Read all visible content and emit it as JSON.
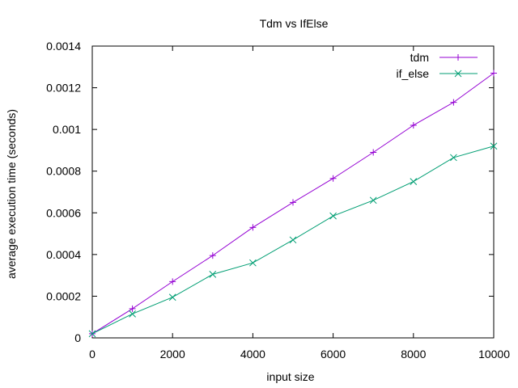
{
  "chart_data": {
    "type": "line",
    "title": "Tdm vs IfElse",
    "xlabel": "input size",
    "ylabel": "average execution time (seconds)",
    "xlim": [
      0,
      10000
    ],
    "ylim": [
      0,
      0.0014
    ],
    "xticks": [
      0,
      2000,
      4000,
      6000,
      8000,
      10000
    ],
    "xtick_labels": [
      "0",
      "2000",
      "4000",
      "6000",
      "8000",
      "10000"
    ],
    "yticks": [
      0,
      0.0002,
      0.0004,
      0.0006,
      0.0008,
      0.001,
      0.0012,
      0.0014
    ],
    "ytick_labels": [
      "0",
      "0.0002",
      "0.0004",
      "0.0006",
      "0.0008",
      "0.001",
      "0.0012",
      "0.0014"
    ],
    "grid": false,
    "legend_position": "top-right",
    "x": [
      0,
      1000,
      2000,
      3000,
      4000,
      5000,
      6000,
      7000,
      8000,
      9000,
      10000
    ],
    "series": [
      {
        "name": "tdm",
        "marker": "plus",
        "color": "#9400d3",
        "values": [
          2e-05,
          0.00014,
          0.00027,
          0.000395,
          0.00053,
          0.00065,
          0.000765,
          0.00089,
          0.00102,
          0.00113,
          0.00127
        ]
      },
      {
        "name": "if_else",
        "marker": "cross",
        "color": "#009e73",
        "values": [
          2e-05,
          0.000115,
          0.000195,
          0.000305,
          0.00036,
          0.00047,
          0.000585,
          0.00066,
          0.00075,
          0.000865,
          0.00092
        ]
      }
    ]
  }
}
